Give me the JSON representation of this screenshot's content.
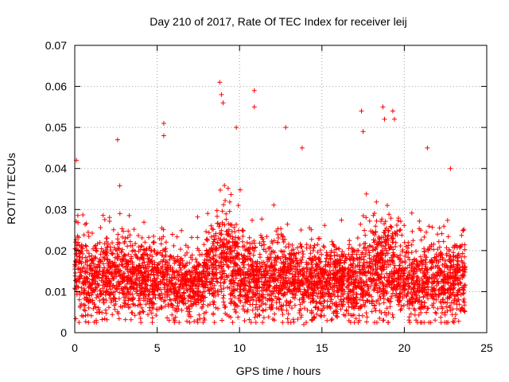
{
  "chart_data": {
    "type": "scatter",
    "title": "Day 210 of 2017, Rate Of TEC Index for receiver leij",
    "xlabel": "GPS time / hours",
    "ylabel": "ROTI / TECUs",
    "xlim": [
      0,
      25
    ],
    "ylim": [
      0,
      0.07
    ],
    "xticks": [
      0,
      5,
      10,
      15,
      20,
      25
    ],
    "xtick_labels": [
      "0",
      "5",
      "10",
      "15",
      "20",
      "25"
    ],
    "yticks": [
      0,
      0.01,
      0.02,
      0.03,
      0.04,
      0.05,
      0.06,
      0.07
    ],
    "ytick_labels": [
      "0",
      "0.01",
      "0.02",
      "0.03",
      "0.04",
      "0.05",
      "0.06",
      "0.07"
    ],
    "grid": true,
    "marker": "+",
    "marker_color": "#ff0000",
    "series": [
      {
        "name": "ROTI",
        "x_range": [
          0,
          23.7
        ],
        "typical_range": [
          0.005,
          0.03
        ],
        "notable_points": [
          {
            "x": 0.1,
            "y": 0.042
          },
          {
            "x": 2.6,
            "y": 0.047
          },
          {
            "x": 5.4,
            "y": 0.051
          },
          {
            "x": 5.4,
            "y": 0.048
          },
          {
            "x": 8.8,
            "y": 0.061
          },
          {
            "x": 8.9,
            "y": 0.058
          },
          {
            "x": 9.0,
            "y": 0.056
          },
          {
            "x": 9.8,
            "y": 0.05
          },
          {
            "x": 10.9,
            "y": 0.059
          },
          {
            "x": 10.9,
            "y": 0.055
          },
          {
            "x": 12.8,
            "y": 0.05
          },
          {
            "x": 13.8,
            "y": 0.045
          },
          {
            "x": 17.4,
            "y": 0.054
          },
          {
            "x": 17.5,
            "y": 0.049
          },
          {
            "x": 18.7,
            "y": 0.055
          },
          {
            "x": 18.8,
            "y": 0.052
          },
          {
            "x": 19.3,
            "y": 0.054
          },
          {
            "x": 19.4,
            "y": 0.052
          },
          {
            "x": 21.4,
            "y": 0.045
          },
          {
            "x": 22.8,
            "y": 0.04
          },
          {
            "x": 13.9,
            "y": 0.002
          },
          {
            "x": 1.3,
            "y": 0.003
          },
          {
            "x": 18.7,
            "y": 0.003
          }
        ]
      }
    ]
  }
}
